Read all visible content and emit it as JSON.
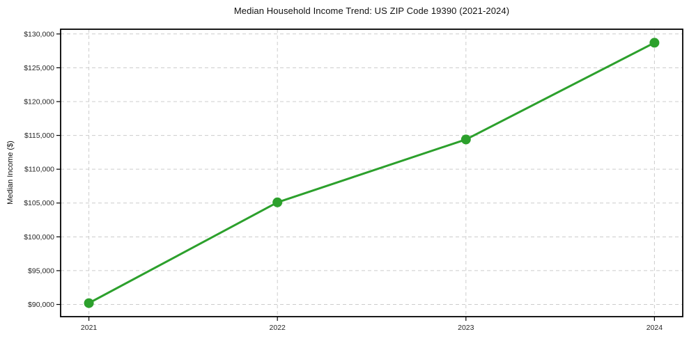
{
  "chart_data": {
    "type": "line",
    "title": "Median Household Income Trend: US ZIP Code 19390 (2021-2024)",
    "xlabel": "",
    "ylabel": "Median Income ($)",
    "x": [
      2021,
      2022,
      2023,
      2024
    ],
    "x_tick_labels": [
      "2021",
      "2022",
      "2023",
      "2024"
    ],
    "series": [
      {
        "name": "Median Household Income",
        "values": [
          90200,
          105100,
          114400,
          128700
        ]
      }
    ],
    "yticks": [
      90000,
      95000,
      100000,
      105000,
      110000,
      115000,
      120000,
      125000,
      130000
    ],
    "ytick_labels": [
      "$90,000",
      "$95,000",
      "$100,000",
      "$105,000",
      "$110,000",
      "$115,000",
      "$120,000",
      "$125,000",
      "$130,000"
    ],
    "ylim": [
      88200,
      130700
    ],
    "xlim": [
      2020.85,
      2024.15
    ],
    "grid": true,
    "grid_style": "dashed",
    "legend": "none",
    "marker": "circle",
    "marker_size": 7,
    "line_width": 3,
    "colors": {
      "line": "#2ca02c",
      "marker": "#2ca02c",
      "grid": "#cccccc",
      "spine": "#000000",
      "tick_text": "#262626",
      "background": "#ffffff"
    }
  }
}
